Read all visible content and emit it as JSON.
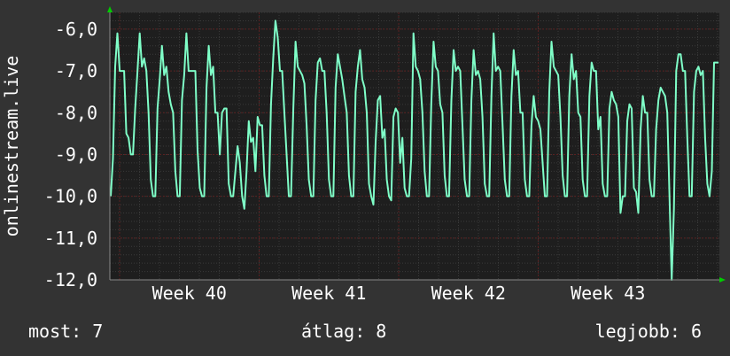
{
  "chart_data": {
    "type": "line",
    "ylabel": "onlinestream.live",
    "y_ticks": [
      "-6,0",
      "-7,0",
      "-8,0",
      "-9,0",
      "-10,0",
      "-11,0",
      "-12,0"
    ],
    "ylim": [
      -12.0,
      -5.6
    ],
    "x_ticks": [
      "Week 40",
      "Week 41",
      "Week 42",
      "Week 43"
    ],
    "grid": true,
    "colors": {
      "background": "#333333",
      "plot": "#1e1e1e",
      "line": "#7fffc8",
      "grid_major": "#5a2020",
      "axis": "#8a8a8a",
      "arrow": "#00cc00"
    },
    "series": [
      {
        "values": [
          -10.0,
          -9.1,
          -6.9,
          -6.1,
          -7.0,
          -7.0,
          -7.0,
          -8.5,
          -8.6,
          -9.0,
          -9.0,
          -7.9,
          -7.0,
          -6.1,
          -6.9,
          -6.7,
          -7.0,
          -8.0,
          -9.6,
          -10.0,
          -10.0,
          -7.9,
          -7.2,
          -6.4,
          -7.1,
          -6.9,
          -7.5,
          -7.8,
          -8.0,
          -9.4,
          -10.0,
          -10.0,
          -7.7,
          -7.1,
          -6.1,
          -7.0,
          -7.0,
          -7.0,
          -7.0,
          -8.9,
          -9.8,
          -10.0,
          -10.0,
          -7.4,
          -6.4,
          -7.1,
          -6.9,
          -8.0,
          -8.0,
          -9.0,
          -8.0,
          -7.9,
          -7.9,
          -9.7,
          -10.0,
          -10.0,
          -9.4,
          -8.8,
          -9.2,
          -10.0,
          -10.3,
          -9.4,
          -8.2,
          -8.7,
          -8.6,
          -9.4,
          -8.1,
          -8.3,
          -8.3,
          -9.5,
          -10.0,
          -10.0,
          -7.8,
          -6.7,
          -5.8,
          -6.2,
          -7.0,
          -7.0,
          -8.0,
          -9.0,
          -10.0,
          -10.0,
          -7.9,
          -6.3,
          -6.9,
          -7.0,
          -7.1,
          -7.3,
          -8.3,
          -9.6,
          -10.0,
          -10.0,
          -7.7,
          -6.8,
          -6.7,
          -7.0,
          -7.0,
          -8.0,
          -9.6,
          -10.0,
          -10.0,
          -7.4,
          -6.6,
          -6.9,
          -7.2,
          -7.6,
          -8.0,
          -9.5,
          -10.0,
          -10.0,
          -7.5,
          -6.9,
          -6.5,
          -7.2,
          -7.4,
          -8.0,
          -9.7,
          -10.0,
          -10.2,
          -8.7,
          -7.7,
          -7.6,
          -8.6,
          -8.4,
          -9.6,
          -10.0,
          -10.1,
          -8.1,
          -7.9,
          -8.0,
          -9.2,
          -8.6,
          -9.8,
          -10.0,
          -10.0,
          -9.1,
          -6.1,
          -6.9,
          -7.0,
          -7.2,
          -8.0,
          -9.4,
          -10.0,
          -10.0,
          -7.8,
          -6.3,
          -6.9,
          -7.0,
          -7.8,
          -8.0,
          -9.5,
          -10.0,
          -10.0,
          -7.7,
          -6.5,
          -7.0,
          -6.9,
          -7.0,
          -8.3,
          -9.6,
          -10.0,
          -10.0,
          -7.7,
          -6.5,
          -7.1,
          -7.0,
          -7.2,
          -8.1,
          -9.7,
          -10.0,
          -10.0,
          -7.6,
          -6.1,
          -7.0,
          -6.9,
          -7.0,
          -8.3,
          -9.6,
          -10.0,
          -10.0,
          -7.6,
          -6.5,
          -7.1,
          -7.0,
          -8.0,
          -8.0,
          -9.6,
          -10.0,
          -10.0,
          -8.3,
          -7.6,
          -8.1,
          -8.2,
          -8.4,
          -9.2,
          -10.0,
          -10.0,
          -7.5,
          -6.3,
          -6.9,
          -7.0,
          -7.1,
          -8.1,
          -9.5,
          -10.0,
          -10.0,
          -7.6,
          -6.6,
          -7.2,
          -7.0,
          -8.0,
          -8.1,
          -9.6,
          -10.0,
          -10.0,
          -7.6,
          -6.8,
          -7.0,
          -7.0,
          -8.4,
          -8.1,
          -9.7,
          -10.0,
          -10.0,
          -7.9,
          -7.5,
          -7.7,
          -7.8,
          -8.1,
          -10.4,
          -10.0,
          -10.0,
          -8.2,
          -7.8,
          -7.9,
          -9.8,
          -9.9,
          -10.4,
          -8.4,
          -7.6,
          -8.0,
          -8.0,
          -9.6,
          -10.0,
          -10.0,
          -8.4,
          -7.7,
          -7.4,
          -7.5,
          -7.6,
          -8.0,
          -10.0,
          -12.0,
          -10.3,
          -7.0,
          -6.6,
          -6.6,
          -7.0,
          -7.0,
          -8.6,
          -10.0,
          -10.0,
          -7.5,
          -7.0,
          -6.9,
          -7.1,
          -7.0,
          -8.6,
          -9.7,
          -10.0,
          -9.4,
          -6.8,
          -6.8,
          -6.8
        ]
      }
    ]
  },
  "stats": {
    "now_label": "most:",
    "now_value": "7",
    "avg_label": "átlag:",
    "avg_value": "8",
    "best_label": "legjobb:",
    "best_value": "6"
  }
}
